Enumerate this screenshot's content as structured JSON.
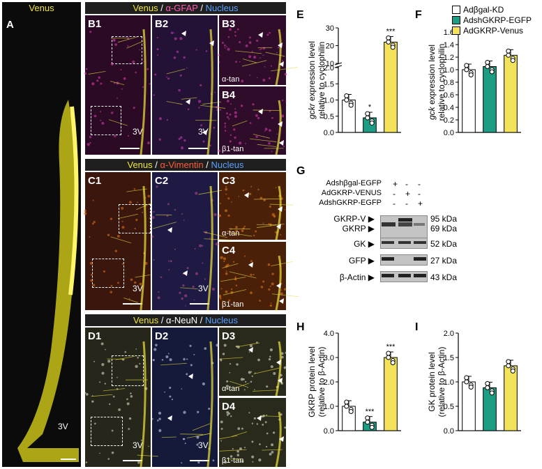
{
  "panel_a": {
    "letter": "A",
    "header": "Venus",
    "label_3v": "3V"
  },
  "row_b": {
    "h1": "Venus",
    "h2": " / ",
    "h3": "α-GFAP",
    "h4": " / ",
    "h5": "Nucleus",
    "p1": "B1",
    "p2": "B2",
    "p3": "B3",
    "p4": "B4",
    "t3": "α-tan",
    "t4": "β1-tan",
    "v3a": "3V",
    "v3b": "3V"
  },
  "row_c": {
    "h1": "Venus",
    "h2": " / ",
    "h3": "α-Vimentin",
    "h4": " / ",
    "h5": "Nucleus",
    "p1": "C1",
    "p2": "C2",
    "p3": "C3",
    "p4": "C4",
    "t3": "α-tan",
    "t4": "β1-tan",
    "v3a": "3V",
    "v3b": "3V"
  },
  "row_d": {
    "h1": "Venus",
    "h2": " / ",
    "h3": "α-NeuN",
    "h4": " / ",
    "h5": "Nucleus",
    "p1": "D1",
    "p2": "D2",
    "p3": "D3",
    "p4": "D4",
    "t3": "α-tan",
    "t4": "β1-tan",
    "v3a": "3V",
    "v3b": "3V"
  },
  "legend": [
    {
      "label": "Adβgal-KD",
      "color": "#ffffff"
    },
    {
      "label": "AdshGKRP-EGFP",
      "color": "#1b9e83"
    },
    {
      "label": "AdGKRP-Venus",
      "color": "#f2e35a"
    }
  ],
  "western": {
    "letter": "G",
    "rows": [
      {
        "label": "Adshβgal-EGFP",
        "marks": [
          "+",
          "-",
          "-"
        ]
      },
      {
        "label": "AdGKRP-VENUS",
        "marks": [
          "-",
          "+",
          "-"
        ]
      },
      {
        "label": "AdshGKRP-EGFP",
        "marks": [
          "-",
          "-",
          "+"
        ]
      }
    ],
    "bands_left": [
      "GKRP-V",
      "GKRP",
      "GK",
      "GFP",
      "β-Actin"
    ],
    "bands_right": [
      "95 kDa",
      "69 kDa",
      "52 kDa",
      "27 kDa",
      "43 kDa"
    ]
  },
  "chart_data": [
    {
      "panel": "E",
      "type": "bar",
      "categories": [
        "Adβgal-KD",
        "AdshGKRP-EGFP",
        "AdGKRP-Venus"
      ],
      "values": [
        1.0,
        0.45,
        22
      ],
      "ylabel_italic": "gckr",
      "ylabel_rest": " expression level",
      "ylabel2": "relative to cyclophilin",
      "broken_axis": true,
      "yticks_low": [
        "0.0",
        "0.5",
        "1.0",
        "1.5",
        "2.0"
      ],
      "yticks_high": [
        "10",
        "20",
        "30"
      ],
      "significance": [
        "",
        "*",
        "***"
      ]
    },
    {
      "panel": "F",
      "type": "bar",
      "categories": [
        "Adβgal-KD",
        "AdshGKRP-EGFP",
        "AdGKRP-Venus"
      ],
      "values": [
        1.0,
        1.05,
        1.23
      ],
      "ylabel_italic": "gck",
      "ylabel_rest": " expression level",
      "ylabel2": "relative to cyclophilin",
      "ylim": [
        0,
        1.6
      ],
      "yticks": [
        "0.0",
        "0.2",
        "0.4",
        "0.6",
        "0.8",
        "1.0",
        "1.2",
        "1.4",
        "1.6"
      ],
      "significance": [
        "",
        "",
        ""
      ]
    },
    {
      "panel": "H",
      "type": "bar",
      "categories": [
        "Adβgal-KD",
        "AdshGKRP-EGFP",
        "AdGKRP-Venus"
      ],
      "values": [
        1.0,
        0.35,
        3.0
      ],
      "ylabel": "GKRP protein level",
      "ylabel2": "(relative to β-Actin)",
      "ylim": [
        0,
        4
      ],
      "yticks": [
        "0.0",
        "1.0",
        "2.0",
        "3.0",
        "4.0"
      ],
      "significance": [
        "",
        "***",
        "***"
      ]
    },
    {
      "panel": "I",
      "type": "bar",
      "categories": [
        "Adβgal-KD",
        "AdshGKRP-EGFP",
        "AdGKRP-Venus"
      ],
      "values": [
        1.0,
        0.88,
        1.33
      ],
      "ylabel": "GK protein level",
      "ylabel2": "(relative to β-Actin)",
      "ylim": [
        0,
        2
      ],
      "yticks": [
        "0.0",
        "0.5",
        "1.0",
        "1.5",
        "2.0"
      ],
      "significance": [
        "",
        "",
        ""
      ]
    }
  ]
}
